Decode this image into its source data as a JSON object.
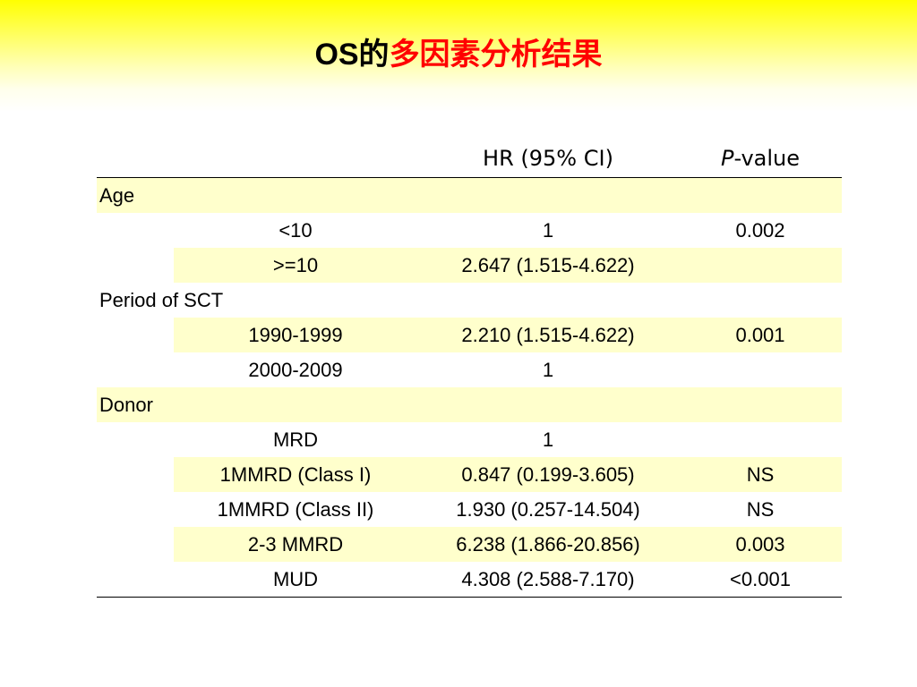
{
  "title": {
    "prefix": "OS的",
    "highlight": "多因素分析结果"
  },
  "table": {
    "header": {
      "hr": "HR (95% CI)",
      "p_italic": "P",
      "p_rest": "-value"
    },
    "rows": [
      {
        "type": "section",
        "label": "Age",
        "highlight": true
      },
      {
        "type": "data",
        "label": "<10",
        "hr": "1",
        "p": "0.002",
        "highlight": false
      },
      {
        "type": "data",
        "label": ">=10",
        "hr": "2.647 (1.515-4.622)",
        "p": "",
        "highlight": true
      },
      {
        "type": "section",
        "label": "Period of SCT",
        "highlight": false
      },
      {
        "type": "data",
        "label": "1990-1999",
        "hr": "2.210 (1.515-4.622)",
        "p": "0.001",
        "highlight": true
      },
      {
        "type": "data",
        "label": "2000-2009",
        "hr": "1",
        "p": "",
        "highlight": false
      },
      {
        "type": "section",
        "label": "Donor",
        "highlight": true
      },
      {
        "type": "data",
        "label": "MRD",
        "hr": "1",
        "p": "",
        "highlight": false
      },
      {
        "type": "data",
        "label": "1MMRD (Class I)",
        "hr": "0.847 (0.199-3.605)",
        "p": "NS",
        "highlight": true
      },
      {
        "type": "data",
        "label": "1MMRD (Class II)",
        "hr": "1.930 (0.257-14.504)",
        "p": "NS",
        "highlight": false
      },
      {
        "type": "data",
        "label": "2-3 MMRD",
        "hr": "6.238 (1.866-20.856)",
        "p": "0.003",
        "highlight": true
      },
      {
        "type": "data",
        "label": "MUD",
        "hr": "4.308 (2.588-7.170)",
        "p": "<0.001",
        "highlight": false
      }
    ]
  },
  "colors": {
    "title_red": "#ff0000",
    "title_black": "#000000",
    "row_highlight": "#ffffcc",
    "banner_yellow": "#ffff00"
  }
}
